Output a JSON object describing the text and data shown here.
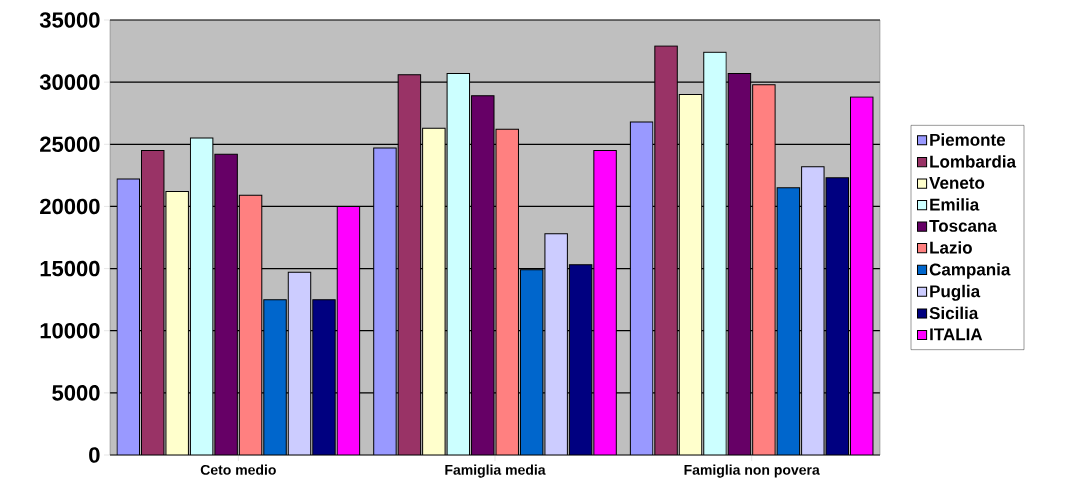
{
  "chart_data": {
    "type": "bar",
    "categories": [
      "Ceto medio",
      "Famiglia media",
      "Famiglia non povera"
    ],
    "series": [
      {
        "name": "Piemonte",
        "color": "#9999ff",
        "values": [
          22200,
          24700,
          26800
        ]
      },
      {
        "name": "Lombardia",
        "color": "#993366",
        "values": [
          24500,
          30600,
          32900
        ]
      },
      {
        "name": "Veneto",
        "color": "#ffffcc",
        "values": [
          21200,
          26300,
          29000
        ]
      },
      {
        "name": "Emilia",
        "color": "#ccffff",
        "values": [
          25500,
          30700,
          32400
        ]
      },
      {
        "name": "Toscana",
        "color": "#660066",
        "values": [
          24200,
          28900,
          30700
        ]
      },
      {
        "name": "Lazio",
        "color": "#ff8080",
        "values": [
          20900,
          26200,
          29800
        ]
      },
      {
        "name": "Campania",
        "color": "#0066cc",
        "values": [
          12500,
          14900,
          21500
        ]
      },
      {
        "name": "Puglia",
        "color": "#ccccff",
        "values": [
          14700,
          17800,
          23200
        ]
      },
      {
        "name": "Sicilia",
        "color": "#000080",
        "values": [
          12500,
          15300,
          22300
        ]
      },
      {
        "name": "ITALIA",
        "color": "#ff00ff",
        "values": [
          20000,
          24500,
          28800
        ]
      }
    ],
    "ylim": [
      0,
      35000
    ],
    "yticks": [
      0,
      5000,
      10000,
      15000,
      20000,
      25000,
      30000,
      35000
    ],
    "grid": "y",
    "legend": "right"
  }
}
